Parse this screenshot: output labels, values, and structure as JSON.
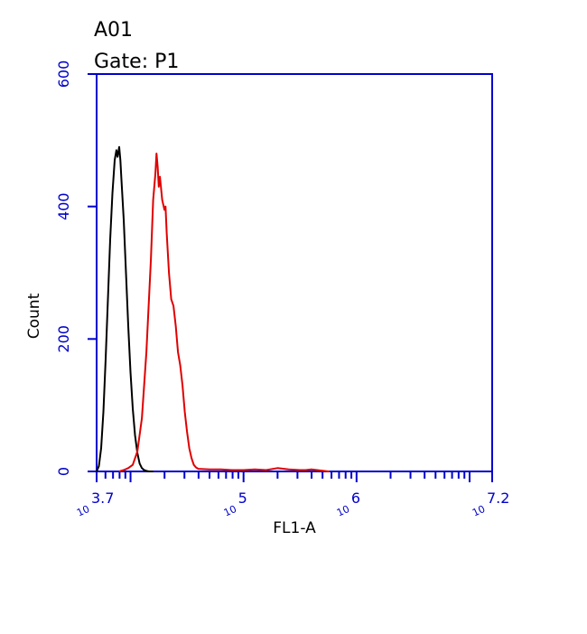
{
  "header": {
    "sample": "A01",
    "gate": "Gate: P1"
  },
  "chart_data": {
    "type": "line",
    "title": "",
    "xlabel": "FL1-A",
    "ylabel": "Count",
    "x_scale": "log",
    "xlim": [
      3.7,
      7.2
    ],
    "ylim": [
      0,
      600
    ],
    "x_ticks": [
      {
        "base": "10",
        "exp": "3.7",
        "value": 3.7
      },
      {
        "base": "10",
        "exp": "5",
        "value": 5
      },
      {
        "base": "10",
        "exp": "6",
        "value": 6
      },
      {
        "base": "10",
        "exp": "7.2",
        "value": 7.2
      }
    ],
    "y_ticks": [
      "0",
      "200",
      "400",
      "600"
    ],
    "axis_color": "#0000cc",
    "grid": false,
    "legend": "none",
    "series": [
      {
        "color": "#000000",
        "x_log10": [
          3.7,
          3.72,
          3.74,
          3.76,
          3.78,
          3.8,
          3.82,
          3.84,
          3.86,
          3.875,
          3.885,
          3.9,
          3.91,
          3.92,
          3.94,
          3.96,
          3.98,
          4.0,
          4.02,
          4.04,
          4.06,
          4.08,
          4.1,
          4.12,
          4.14,
          4.16,
          4.2
        ],
        "y": [
          0,
          8,
          35,
          90,
          170,
          260,
          350,
          420,
          470,
          485,
          475,
          490,
          470,
          440,
          380,
          300,
          220,
          150,
          95,
          55,
          28,
          12,
          5,
          2,
          1,
          0,
          0
        ]
      },
      {
        "color": "#e00000",
        "x_log10": [
          3.9,
          3.94,
          3.98,
          4.02,
          4.06,
          4.1,
          4.14,
          4.18,
          4.2,
          4.22,
          4.23,
          4.24,
          4.25,
          4.26,
          4.28,
          4.3,
          4.31,
          4.32,
          4.34,
          4.36,
          4.38,
          4.4,
          4.42,
          4.44,
          4.46,
          4.48,
          4.5,
          4.52,
          4.54,
          4.56,
          4.58,
          4.6,
          4.7,
          4.8,
          4.9,
          5.0,
          5.1,
          5.2,
          5.3,
          5.4,
          5.5,
          5.55,
          5.6,
          5.7,
          5.75,
          5.76
        ],
        "y": [
          0,
          2,
          5,
          10,
          30,
          80,
          180,
          320,
          410,
          450,
          480,
          460,
          430,
          445,
          410,
          395,
          400,
          360,
          300,
          260,
          250,
          220,
          180,
          160,
          130,
          90,
          60,
          35,
          20,
          10,
          6,
          4,
          3,
          3,
          2,
          2,
          3,
          2,
          5,
          3,
          2,
          2,
          3,
          1,
          0,
          0
        ]
      }
    ]
  }
}
